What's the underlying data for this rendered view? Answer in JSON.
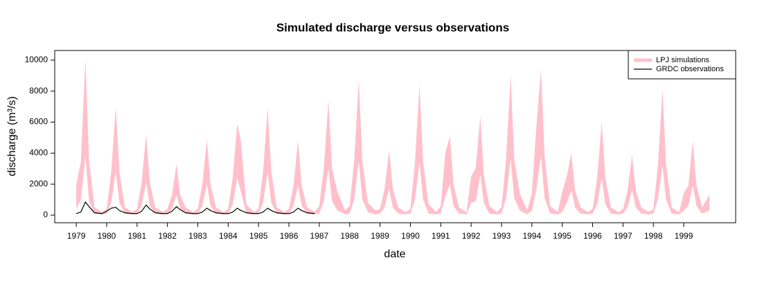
{
  "chart_data": {
    "type": "band",
    "title": "Simulated discharge versus observations",
    "xlabel": "date",
    "ylabel": "discharge (m³/s)",
    "xlim": [
      1978.29,
      2000.71
    ],
    "ylim": [
      -490,
      10620
    ],
    "xticks": [
      1979,
      1980,
      1981,
      1982,
      1983,
      1984,
      1985,
      1986,
      1987,
      1988,
      1989,
      1990,
      1991,
      1992,
      1993,
      1994,
      1995,
      1996,
      1997,
      1998,
      1999
    ],
    "yticks": [
      0,
      2000,
      4000,
      6000,
      8000,
      10000
    ],
    "legend": "topright",
    "series": [
      {
        "name": "LPJ simulations",
        "color": "#ffc0cb",
        "x": [
          1979,
          1979.15,
          1979.3,
          1979.42,
          1979.6,
          1979.85,
          1980,
          1980.15,
          1980.3,
          1980.42,
          1980.6,
          1980.85,
          1981,
          1981.15,
          1981.3,
          1981.42,
          1981.6,
          1981.85,
          1982,
          1982.15,
          1982.3,
          1982.42,
          1982.6,
          1982.85,
          1983,
          1983.15,
          1983.3,
          1983.42,
          1983.6,
          1983.85,
          1984,
          1984.15,
          1984.3,
          1984.42,
          1984.6,
          1984.85,
          1985,
          1985.15,
          1985.3,
          1985.42,
          1985.6,
          1985.85,
          1986,
          1986.15,
          1986.3,
          1986.42,
          1986.6,
          1986.85,
          1987,
          1987.15,
          1987.3,
          1987.42,
          1987.6,
          1987.85,
          1988,
          1988.15,
          1988.3,
          1988.42,
          1988.6,
          1988.85,
          1989,
          1989.15,
          1989.3,
          1989.42,
          1989.6,
          1989.85,
          1990,
          1990.15,
          1990.3,
          1990.42,
          1990.6,
          1990.85,
          1991,
          1991.15,
          1991.3,
          1991.42,
          1991.6,
          1991.85,
          1992,
          1992.15,
          1992.3,
          1992.42,
          1992.6,
          1992.85,
          1993,
          1993.15,
          1993.3,
          1993.42,
          1993.6,
          1993.85,
          1994,
          1994.15,
          1994.3,
          1994.42,
          1994.6,
          1994.85,
          1995,
          1995.15,
          1995.3,
          1995.42,
          1995.6,
          1995.85,
          1996,
          1996.15,
          1996.3,
          1996.42,
          1996.6,
          1996.85,
          1997,
          1997.15,
          1997.3,
          1997.42,
          1997.6,
          1997.85,
          1998,
          1998.15,
          1998.3,
          1998.42,
          1998.6,
          1998.85,
          1999,
          1999.15,
          1999.3,
          1999.42,
          1999.6,
          1999.85
        ],
        "upper": [
          2000,
          3400,
          10100,
          3500,
          500,
          200,
          400,
          2800,
          7000,
          2800,
          500,
          200,
          400,
          2100,
          5200,
          2100,
          500,
          200,
          400,
          1300,
          3300,
          1300,
          500,
          200,
          400,
          2000,
          4900,
          2000,
          500,
          200,
          400,
          2400,
          5900,
          4800,
          700,
          200,
          400,
          2800,
          6900,
          2800,
          500,
          200,
          400,
          1900,
          4800,
          1900,
          500,
          200,
          600,
          3000,
          7400,
          3000,
          1500,
          300,
          600,
          3500,
          8700,
          3500,
          800,
          300,
          400,
          1700,
          4200,
          1700,
          500,
          200,
          400,
          3400,
          8400,
          3400,
          700,
          200,
          600,
          4000,
          5100,
          2000,
          500,
          200,
          2500,
          3000,
          6400,
          2600,
          600,
          200,
          500,
          3600,
          9000,
          3600,
          1400,
          300,
          1400,
          5800,
          9400,
          3800,
          600,
          200,
          1500,
          2500,
          4000,
          1600,
          500,
          200,
          400,
          2400,
          6000,
          2400,
          500,
          200,
          400,
          1600,
          3900,
          1600,
          500,
          200,
          400,
          3200,
          8100,
          3200,
          500,
          200,
          1400,
          1900,
          4800,
          1900,
          500,
          1300
        ],
        "lower": [
          400,
          1000,
          3800,
          900,
          100,
          50,
          100,
          800,
          2800,
          800,
          100,
          50,
          100,
          600,
          2100,
          600,
          100,
          50,
          100,
          400,
          1300,
          400,
          100,
          50,
          100,
          600,
          2000,
          600,
          100,
          50,
          100,
          700,
          2400,
          1500,
          100,
          50,
          100,
          800,
          2800,
          800,
          100,
          50,
          100,
          600,
          1900,
          600,
          100,
          50,
          100,
          900,
          3000,
          900,
          300,
          50,
          100,
          1000,
          3500,
          1000,
          200,
          50,
          100,
          500,
          1700,
          500,
          100,
          50,
          100,
          1000,
          3400,
          1000,
          100,
          50,
          100,
          1200,
          2000,
          600,
          100,
          50,
          800,
          900,
          2600,
          800,
          100,
          50,
          100,
          1100,
          3600,
          1100,
          300,
          50,
          300,
          1700,
          3800,
          1100,
          100,
          50,
          200,
          800,
          1600,
          500,
          100,
          50,
          100,
          700,
          2400,
          700,
          100,
          50,
          100,
          500,
          1600,
          500,
          100,
          50,
          100,
          1000,
          3200,
          1000,
          100,
          50,
          300,
          600,
          1900,
          600,
          100,
          300
        ]
      },
      {
        "name": "GRDC observations",
        "color": "#000000",
        "x": [
          1979,
          1979.15,
          1979.3,
          1979.42,
          1979.6,
          1979.85,
          1980,
          1980.15,
          1980.3,
          1980.42,
          1980.6,
          1980.85,
          1981,
          1981.15,
          1981.3,
          1981.42,
          1981.6,
          1981.85,
          1982,
          1982.15,
          1982.3,
          1982.42,
          1982.6,
          1982.85,
          1983,
          1983.15,
          1983.3,
          1983.42,
          1983.6,
          1983.85,
          1984,
          1984.15,
          1984.3,
          1984.42,
          1984.6,
          1984.85,
          1985,
          1985.15,
          1985.3,
          1985.42,
          1985.6,
          1985.85,
          1986,
          1986.15,
          1986.3,
          1986.42,
          1986.6,
          1986.85
        ],
        "values": [
          100,
          200,
          850,
          550,
          150,
          100,
          250,
          450,
          500,
          300,
          150,
          100,
          100,
          250,
          650,
          400,
          150,
          100,
          100,
          250,
          550,
          350,
          150,
          100,
          100,
          200,
          450,
          300,
          150,
          100,
          100,
          200,
          450,
          300,
          150,
          100,
          100,
          200,
          450,
          300,
          150,
          100,
          100,
          200,
          450,
          300,
          150,
          100
        ]
      }
    ]
  }
}
